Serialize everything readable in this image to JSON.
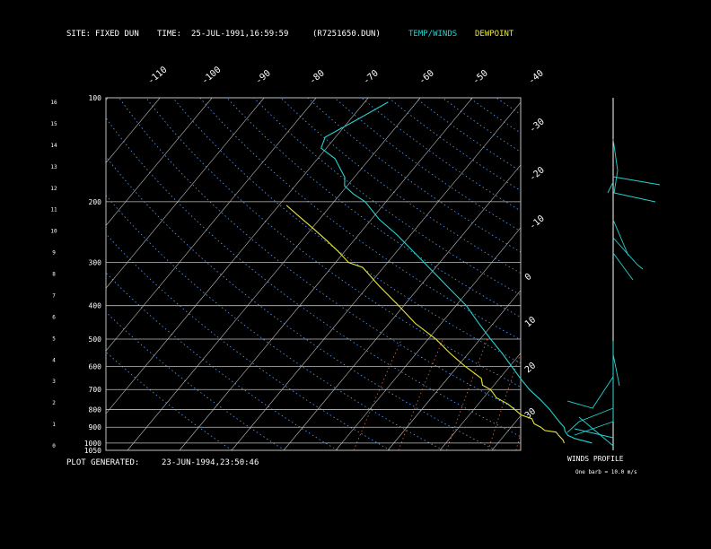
{
  "header": {
    "site_label": "SITE:",
    "site_value": "FIXED DUN",
    "time_label": "TIME:",
    "time_value": "25-JUL-1991,16:59:59",
    "file_id": "(R7251650.DUN)",
    "legend_temp": "TEMP/WINDS",
    "legend_dewpoint": "DEWPOINT"
  },
  "footer": {
    "generated_label": "PLOT GENERATED:",
    "generated_value": "23-JUN-1994,23:50:46"
  },
  "winds_profile": {
    "title": "WINDS PROFILE",
    "note": "One barb = 10.0 m/s"
  },
  "colors": {
    "temp": "#22d3d3",
    "dewpoint": "#e8e83a",
    "dry_adiabat": "#5aa0ff",
    "mixing_ratio": "#e26a3a",
    "grid": "#bfbfbf",
    "text": "#ffffff"
  },
  "chart_data": {
    "type": "line",
    "series": [
      {
        "name": "TEMP/WINDS",
        "points": [
          {
            "p": 1000,
            "t": 28.0
          },
          {
            "p": 970,
            "t": 24.0
          },
          {
            "p": 950,
            "t": 22.2
          },
          {
            "p": 925,
            "t": 21.0
          },
          {
            "p": 900,
            "t": 20.2
          },
          {
            "p": 870,
            "t": 18.5
          },
          {
            "p": 850,
            "t": 17.4
          },
          {
            "p": 800,
            "t": 14.6
          },
          {
            "p": 750,
            "t": 11.3
          },
          {
            "p": 700,
            "t": 7.5
          },
          {
            "p": 650,
            "t": 4.0
          },
          {
            "p": 600,
            "t": 0.4
          },
          {
            "p": 550,
            "t": -3.5
          },
          {
            "p": 500,
            "t": -8.0
          },
          {
            "p": 450,
            "t": -12.8
          },
          {
            "p": 400,
            "t": -18.0
          },
          {
            "p": 350,
            "t": -25.0
          },
          {
            "p": 300,
            "t": -33.0
          },
          {
            "p": 250,
            "t": -42.5
          },
          {
            "p": 225,
            "t": -48.5
          },
          {
            "p": 200,
            "t": -54.0
          },
          {
            "p": 190,
            "t": -57.5
          },
          {
            "p": 180,
            "t": -60.5
          },
          {
            "p": 170,
            "t": -61.8
          },
          {
            "p": 150,
            "t": -66.7
          },
          {
            "p": 140,
            "t": -71.0
          },
          {
            "p": 130,
            "t": -72.0
          },
          {
            "p": 115,
            "t": -68.5
          },
          {
            "p": 103,
            "t": -65.5
          }
        ]
      },
      {
        "name": "DEWPOINT",
        "points": [
          {
            "p": 1000,
            "t": 22.7
          },
          {
            "p": 980,
            "t": 22.0
          },
          {
            "p": 950,
            "t": 20.4
          },
          {
            "p": 930,
            "t": 19.4
          },
          {
            "p": 920,
            "t": 17.0
          },
          {
            "p": 900,
            "t": 15.7
          },
          {
            "p": 880,
            "t": 13.9
          },
          {
            "p": 850,
            "t": 12.6
          },
          {
            "p": 830,
            "t": 10.0
          },
          {
            "p": 800,
            "t": 7.9
          },
          {
            "p": 770,
            "t": 5.6
          },
          {
            "p": 740,
            "t": 2.5
          },
          {
            "p": 720,
            "t": 1.3
          },
          {
            "p": 700,
            "t": 0.0
          },
          {
            "p": 680,
            "t": -2.2
          },
          {
            "p": 650,
            "t": -3.5
          },
          {
            "p": 600,
            "t": -8.5
          },
          {
            "p": 550,
            "t": -13.5
          },
          {
            "p": 500,
            "t": -18.5
          },
          {
            "p": 450,
            "t": -25.0
          },
          {
            "p": 400,
            "t": -31.0
          },
          {
            "p": 350,
            "t": -38.0
          },
          {
            "p": 310,
            "t": -44.0
          },
          {
            "p": 300,
            "t": -47.5
          },
          {
            "p": 280,
            "t": -51.0
          },
          {
            "p": 260,
            "t": -55.0
          },
          {
            "p": 240,
            "t": -59.5
          },
          {
            "p": 220,
            "t": -64.5
          },
          {
            "p": 205,
            "t": -68.5
          }
        ]
      }
    ],
    "pressure_levels": [
      100,
      200,
      300,
      400,
      500,
      600,
      700,
      800,
      900,
      1000,
      1050
    ],
    "height_ticks": [
      "16",
      "15",
      "14",
      "13",
      "12",
      "11",
      "10",
      "9",
      "8",
      "7",
      "6",
      "5",
      "4",
      "3",
      "2",
      "1",
      "0"
    ],
    "isotherm_labels": [
      "-110",
      "-100",
      "-90",
      "-80",
      "-70",
      "-60",
      "-50",
      "-40",
      "-30",
      "-20",
      "-10",
      "0",
      "10",
      "20",
      "30"
    ],
    "xlim": [
      -40,
      40
    ],
    "ylim": [
      1050,
      100
    ],
    "y_scale": "log"
  }
}
